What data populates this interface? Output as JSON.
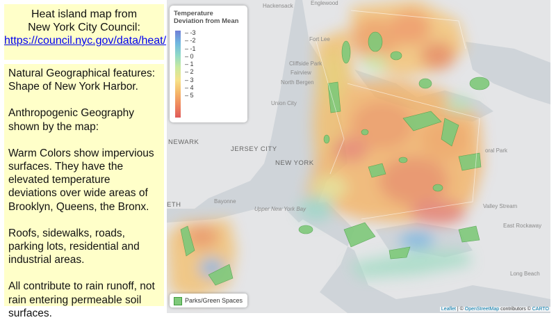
{
  "caption": {
    "line1": "Heat island map from",
    "line2": "New York City Council:",
    "link": "https://council.nyc.gov/data/heat/"
  },
  "notes": {
    "p1": "Natural Geographical features: Shape of New York Harbor.",
    "p2": "Anthropogenic Geography shown by the map:",
    "p3": "Warm Colors show impervious surfaces. They have the elevated temperature deviations over wide areas of Brooklyn, Queens, the Bronx.",
    "p4": "Roofs, sidewalks, roads, parking lots, residential and industrial areas.",
    "p5": "All contribute to rain runoff, not rain entering permeable soil  surfaces."
  },
  "legend": {
    "title": "Temperature Deviation from Mean",
    "ticks": [
      "-3",
      "-2",
      "-1",
      "0",
      "1",
      "2",
      "3",
      "4",
      "5"
    ],
    "colors": [
      "#6f7ed6",
      "#6fb6e0",
      "#8fd9c8",
      "#c9eaa0",
      "#f6e28a",
      "#f5b86a",
      "#ef8a5e",
      "#e05a5a"
    ]
  },
  "parks_legend": {
    "label": "Parks/Green Spaces",
    "color": "#7fc97a"
  },
  "attribution": {
    "leaflet": "Leaflet",
    "sep1": " | © ",
    "osm": "OpenStreetMap",
    "mid": " contributors © ",
    "carto": "CARTO"
  },
  "places": {
    "hackensack": "Hackensack",
    "englewood": "Englewood",
    "fort_lee": "Fort Lee",
    "cliffside_park": "Cliffside Park",
    "fairview": "Fairview",
    "north_bergen": "North Bergen",
    "union_city": "Union City",
    "newark": "NEWARK",
    "jersey_city": "JERSEY CITY",
    "new_york": "NEW YORK",
    "bayonne": "Bayonne",
    "upper_ny_bay": "Upper New York Bay",
    "eth": "ETH",
    "valley_stream": "Valley Stream",
    "east_rockaway": "East Rockaway",
    "long_beach": "Long Beach",
    "floral_park": "oral Park"
  }
}
